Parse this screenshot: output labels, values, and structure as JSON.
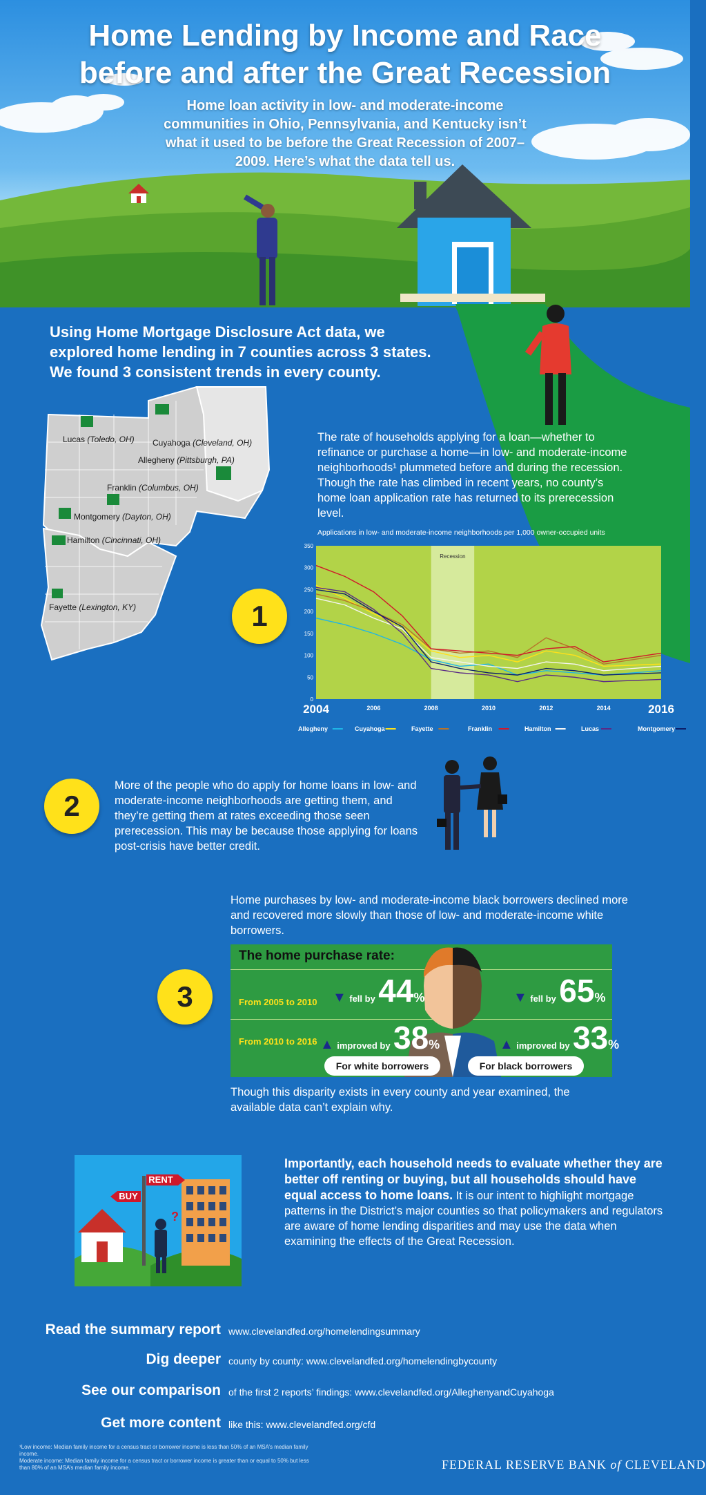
{
  "header": {
    "title_line1": "Home Lending by Income and Race",
    "title_line2": "before and after the Great Recession",
    "subtitle": "Home loan activity in low- and moderate-income communities in Ohio, Pennsylvania, and Kentucky isn’t what it used to be before the Great Recession of 2007–2009. Here’s what the data tell us."
  },
  "intro": "Using Home Mortgage Disclosure Act data, we explored home lending in 7 counties across 3 states. We found 3 consistent trends in every county.",
  "map_labels": [
    {
      "county": "Lucas",
      "city": "(Toledo, OH)"
    },
    {
      "county": "Cuyahoga",
      "city": "(Cleveland, OH)"
    },
    {
      "county": "Allegheny",
      "city": "(Pittsburgh, PA)"
    },
    {
      "county": "Franklin",
      "city": "(Columbus, OH)"
    },
    {
      "county": "Montgomery",
      "city": "(Dayton, OH)"
    },
    {
      "county": "Hamilton",
      "city": "(Cincinnati, OH)"
    },
    {
      "county": "Fayette",
      "city": "(Lexington, KY)"
    }
  ],
  "trend1": {
    "number": "1",
    "text": "The rate of households applying for a loan—whether to refinance or purchase a home—in low- and moderate-income neighborhoods¹ plummeted before and during the recession. Though the rate has climbed in recent years, no county’s home loan application rate has returned to its prerecession level."
  },
  "chart_data": {
    "type": "line",
    "title": "Applications in low- and moderate-income neighborhoods per 1,000 owner-occupied units",
    "annotation": "Recession",
    "recession_span": [
      2008,
      2009.5
    ],
    "x": [
      2004,
      2005,
      2006,
      2007,
      2008,
      2009,
      2010,
      2011,
      2012,
      2013,
      2014,
      2016
    ],
    "x_ticks": [
      2004,
      2006,
      2008,
      2010,
      2012,
      2014,
      2016
    ],
    "xlim": [
      2004,
      2016
    ],
    "ylim": [
      0,
      350
    ],
    "y_ticks": [
      0,
      50,
      100,
      150,
      200,
      250,
      300,
      350
    ],
    "grid": false,
    "legend_position": "bottom",
    "series": [
      {
        "name": "Allegheny",
        "color": "#1fb5e6",
        "values": [
          185,
          170,
          150,
          125,
          90,
          75,
          80,
          55,
          65,
          60,
          55,
          65
        ]
      },
      {
        "name": "Cuyahoga",
        "color": "#ffe11a",
        "values": [
          260,
          230,
          195,
          165,
          110,
          95,
          100,
          85,
          110,
          100,
          75,
          80
        ]
      },
      {
        "name": "Fayette",
        "color": "#b8732a",
        "values": [
          240,
          225,
          200,
          170,
          115,
          105,
          110,
          95,
          140,
          115,
          80,
          100
        ]
      },
      {
        "name": "Franklin",
        "color": "#d0182a",
        "values": [
          305,
          280,
          245,
          190,
          115,
          110,
          105,
          100,
          115,
          120,
          85,
          105
        ]
      },
      {
        "name": "Hamilton",
        "color": "#f5f5f5",
        "values": [
          230,
          215,
          185,
          160,
          95,
          85,
          75,
          70,
          85,
          80,
          65,
          75
        ]
      },
      {
        "name": "Lucas",
        "color": "#5a2a86",
        "values": [
          255,
          245,
          205,
          150,
          70,
          60,
          55,
          40,
          55,
          50,
          40,
          45
        ]
      },
      {
        "name": "Montgomery",
        "color": "#0c1f6a",
        "values": [
          250,
          240,
          200,
          165,
          85,
          70,
          60,
          55,
          70,
          65,
          55,
          60
        ]
      }
    ]
  },
  "trend2": {
    "number": "2",
    "text": "More of the people who do apply for home loans in low- and moderate-income neighborhoods are getting them, and they’re getting them at rates exceeding those seen prerecession. This may be because those applying for loans post-crisis have better credit."
  },
  "trend3": {
    "number": "3",
    "intro": "Home purchases by low- and moderate-income black borrowers declined more and recovered more slowly than those of low- and moderate-income white borrowers.",
    "panel_title": "The home purchase rate:",
    "row1_label": "From 2005 to 2010",
    "row2_label": "From 2010 to 2016",
    "fell_word": "fell by",
    "improved_word": "improved by",
    "white_fell": "44",
    "white_improved": "38",
    "black_fell": "65",
    "black_improved": "33",
    "pct": "%",
    "white_label": "For white borrowers",
    "black_label": "For black borrowers",
    "outro": "Though this disparity exists in every county and year examined, the available data can’t explain why."
  },
  "closing": {
    "sign_rent": "RENT",
    "sign_buy": "BUY",
    "bold_text": "Importantly, each household needs to evaluate whether they are better off renting or buying, but all households should have equal access to home loans.",
    "text": " It is our intent to highlight mortgage patterns in the District’s major counties so that policymakers and regulators are aware of home lending disparities and may use the data when examining the effects of the Great Recession."
  },
  "resources": [
    {
      "label": "Read the summary report",
      "text": "www.clevelandfed.org/homelendingsummary"
    },
    {
      "label": "Dig deeper",
      "text": "county by county: www.clevelandfed.org/homelendingbycounty"
    },
    {
      "label": "See our comparison",
      "text": "of the first 2 reports’ findings: www.clevelandfed.org/AlleghenyandCuyahoga"
    },
    {
      "label": "Get more content",
      "text": "like this: www.clevelandfed.org/cfd"
    }
  ],
  "footnote1": "¹Low income: Median family income for a census tract or borrower income is less than 50% of an MSA’s median family income.",
  "footnote2": "Moderate income: Median family income for a census tract or borrower income is greater than or equal to 50% but less than 80% of an MSA’s median family income.",
  "brand_part1": "FEDERAL RESERVE BANK",
  "brand_of": "of",
  "brand_part2": "CLEVELAND",
  "colors": {
    "background": "#1a6fc0",
    "green": "#2e9b42",
    "yellow": "#ffe11a",
    "chart_bg": "#b2d348"
  }
}
